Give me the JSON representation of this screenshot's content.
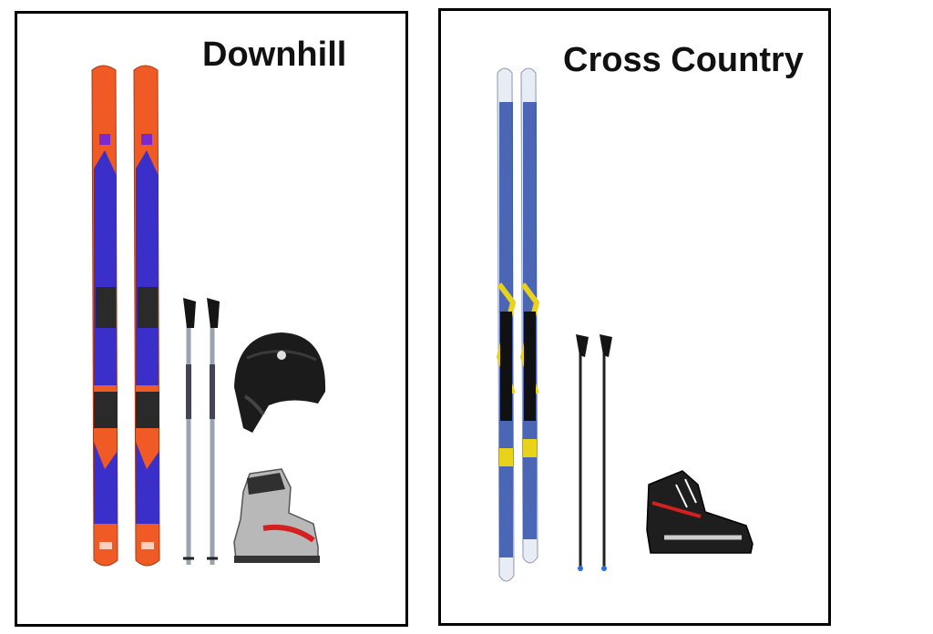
{
  "panels": {
    "downhill": {
      "title": "Downhill",
      "items": [
        "skis-icon",
        "ski-poles-icon",
        "helmet-icon",
        "ski-boot-icon"
      ]
    },
    "cross_country": {
      "title": "Cross Country",
      "items": [
        "cross-country-skis-icon",
        "cross-country-poles-icon",
        "cross-country-boot-icon"
      ]
    }
  },
  "colors": {
    "downhill_ski_orange": "#f05a24",
    "downhill_ski_blue": "#3b2fc9",
    "xc_ski_white": "#e8ecf4",
    "xc_ski_blue": "#2f4fa8",
    "xc_ski_yellow": "#e8d21a",
    "helmet_black": "#1b1b1b",
    "boot_silver": "#b8b8b8",
    "boot_red": "#d42020"
  }
}
